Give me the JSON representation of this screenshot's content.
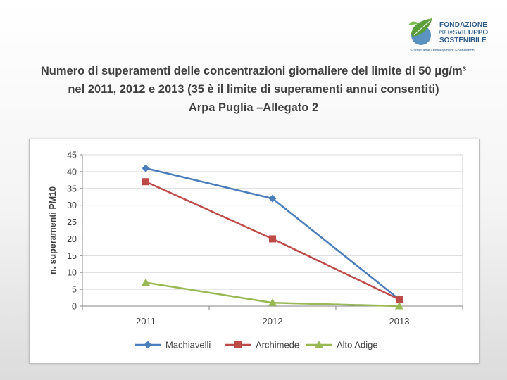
{
  "logo": {
    "line1": "FONDAZIONE",
    "line2_small": "PER LO",
    "line2": "SVILUPPO",
    "line3": "SOSTENIBILE",
    "line4": "Sustainable Development Foundation",
    "colors": {
      "text": "#2e5c8a",
      "leaf": "#5a9e3a",
      "globe": "#3d7fb5"
    }
  },
  "title": {
    "line1": "Numero di superamenti delle concentrazioni giornaliere del limite di 50  μg/m³",
    "line2": "nel 2011, 2012 e 2013 (35 è il limite di superamenti annui consentiti)",
    "line3": "Arpa Puglia –Allegato 2"
  },
  "chart_data": {
    "type": "line",
    "x": [
      "2011",
      "2012",
      "2013"
    ],
    "ylabel": "n. superamenti PM10",
    "ylim": [
      0,
      45
    ],
    "yticks": [
      0,
      5,
      10,
      15,
      20,
      25,
      30,
      35,
      40,
      45
    ],
    "grid": true,
    "legend": "bottom",
    "series": [
      {
        "name": "Machiavelli",
        "values": [
          41,
          32,
          2
        ],
        "color": "#4a7ebb",
        "marker": "diamond"
      },
      {
        "name": "Archimede",
        "values": [
          37,
          20,
          2
        ],
        "color": "#be4b48",
        "marker": "square"
      },
      {
        "name": "Alto Adige",
        "values": [
          7,
          1,
          0
        ],
        "color": "#98b954",
        "marker": "triangle"
      }
    ]
  }
}
